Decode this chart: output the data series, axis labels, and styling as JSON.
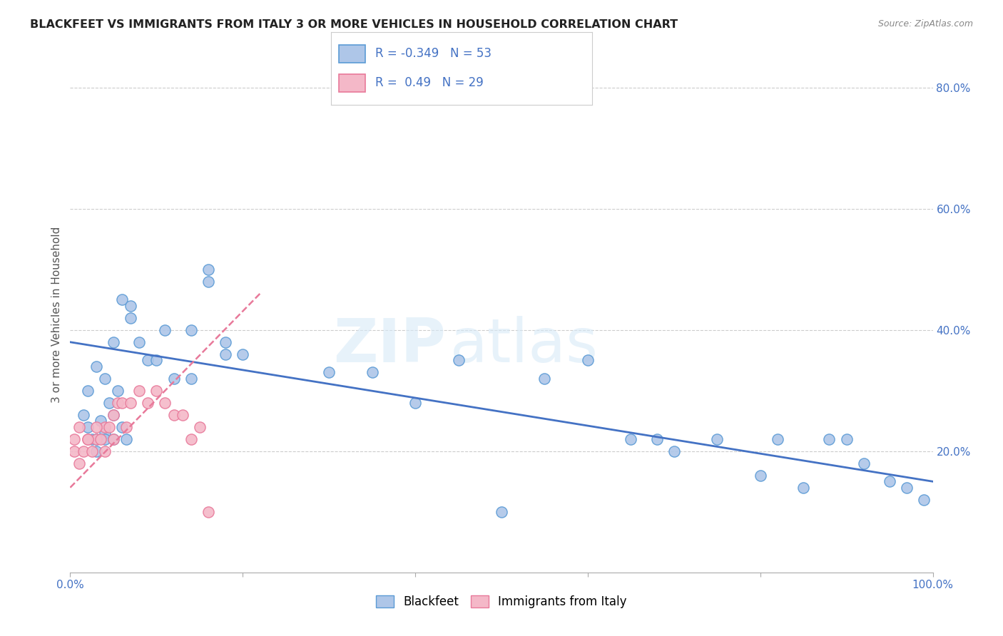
{
  "title": "BLACKFEET VS IMMIGRANTS FROM ITALY 3 OR MORE VEHICLES IN HOUSEHOLD CORRELATION CHART",
  "source": "Source: ZipAtlas.com",
  "ylabel": "3 or more Vehicles in Household",
  "watermark_zip": "ZIP",
  "watermark_atlas": "atlas",
  "blue_color": "#aec6e8",
  "blue_edge_color": "#5b9bd5",
  "pink_color": "#f4b8c8",
  "pink_edge_color": "#e8799a",
  "blue_line_color": "#4472c4",
  "pink_line_color": "#e8799a",
  "xmin": 0.0,
  "xmax": 100.0,
  "ymin": 0.0,
  "ymax": 85.0,
  "yticks": [
    20,
    40,
    60,
    80
  ],
  "ytick_labels": [
    "20.0%",
    "40.0%",
    "60.0%",
    "80.0%"
  ],
  "blue_R": -0.349,
  "blue_N": 53,
  "pink_R": 0.49,
  "pink_N": 29,
  "bg_color": "#ffffff",
  "grid_color": "#c0c0c0",
  "tick_color": "#4472c4",
  "blue_line_y0": 38.0,
  "blue_line_y100": 15.0,
  "pink_line_x0": 0.0,
  "pink_line_y0": 14.0,
  "pink_line_x1": 22.0,
  "pink_line_y1": 46.0,
  "blue_scatter_x": [
    1.5,
    2.0,
    2.5,
    3.0,
    3.5,
    4.0,
    4.5,
    5.0,
    5.5,
    6.0,
    6.5,
    7.0,
    8.0,
    9.0,
    10.0,
    11.0,
    12.0,
    14.0,
    16.0,
    18.0,
    2.0,
    3.0,
    4.0,
    5.0,
    6.0,
    7.0,
    3.0,
    4.0,
    5.0,
    14.0,
    16.0,
    18.0,
    20.0,
    30.0,
    35.0,
    40.0,
    45.0,
    50.0,
    55.0,
    60.0,
    65.0,
    68.0,
    70.0,
    75.0,
    80.0,
    82.0,
    85.0,
    88.0,
    90.0,
    92.0,
    95.0,
    97.0,
    99.0
  ],
  "blue_scatter_y": [
    26.0,
    24.0,
    22.0,
    22.0,
    25.0,
    23.0,
    28.0,
    26.0,
    30.0,
    24.0,
    22.0,
    42.0,
    38.0,
    35.0,
    35.0,
    40.0,
    32.0,
    40.0,
    48.0,
    38.0,
    30.0,
    34.0,
    32.0,
    38.0,
    45.0,
    44.0,
    20.0,
    22.0,
    22.0,
    32.0,
    50.0,
    36.0,
    36.0,
    33.0,
    33.0,
    28.0,
    35.0,
    10.0,
    32.0,
    35.0,
    22.0,
    22.0,
    20.0,
    22.0,
    16.0,
    22.0,
    14.0,
    22.0,
    22.0,
    18.0,
    15.0,
    14.0,
    12.0
  ],
  "pink_scatter_x": [
    0.5,
    1.0,
    1.5,
    2.0,
    2.5,
    3.0,
    3.5,
    4.0,
    4.5,
    5.0,
    5.5,
    6.0,
    6.5,
    7.0,
    8.0,
    9.0,
    10.0,
    11.0,
    12.0,
    13.0,
    14.0,
    15.0,
    0.5,
    1.0,
    2.0,
    3.0,
    4.0,
    5.0,
    16.0
  ],
  "pink_scatter_y": [
    20.0,
    18.0,
    20.0,
    22.0,
    20.0,
    22.0,
    22.0,
    24.0,
    24.0,
    26.0,
    28.0,
    28.0,
    24.0,
    28.0,
    30.0,
    28.0,
    30.0,
    28.0,
    26.0,
    26.0,
    22.0,
    24.0,
    22.0,
    24.0,
    22.0,
    24.0,
    20.0,
    22.0,
    10.0
  ]
}
